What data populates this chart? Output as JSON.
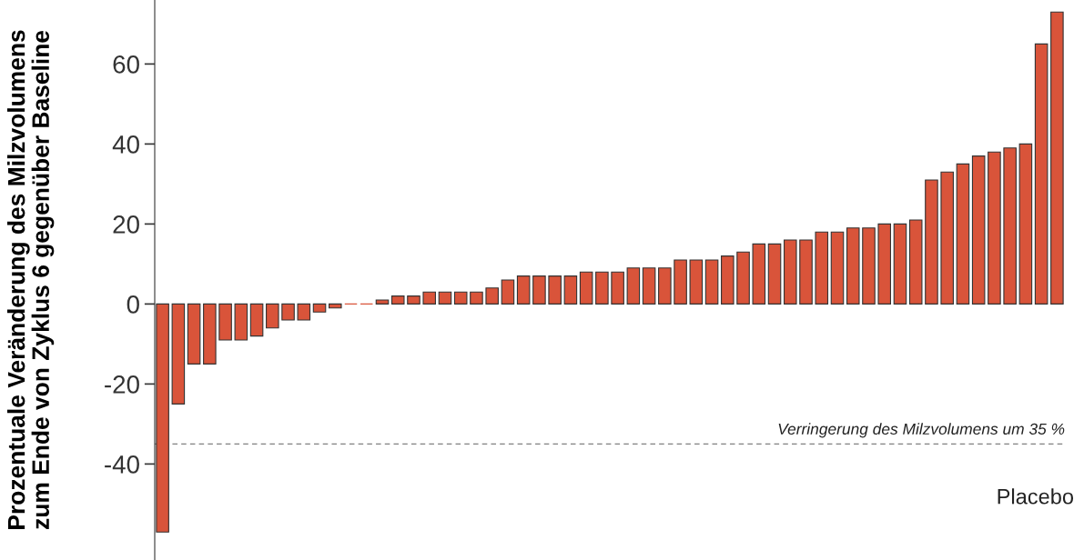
{
  "chart_data": {
    "type": "bar",
    "ylabel": "Prozentuale Veränderung des Milzvolumens\nzum Ende von Zyklus 6 gegenüber Baseline",
    "categories": [
      null,
      null,
      null,
      null,
      null,
      null,
      null,
      null,
      null,
      null,
      null,
      null,
      null,
      null,
      null,
      null,
      null,
      null,
      null,
      null,
      null,
      null,
      null,
      null,
      null,
      null,
      null,
      null,
      null,
      null,
      null,
      null,
      null,
      null,
      null,
      null,
      null,
      null,
      null,
      null,
      null,
      null,
      null,
      null,
      null,
      null,
      null,
      null,
      null,
      null,
      null,
      null,
      null,
      null,
      null,
      null,
      null,
      null
    ],
    "values": [
      -57,
      -25,
      -15,
      -15,
      -9,
      -9,
      -8,
      -6,
      -4,
      -4,
      -2,
      -1,
      0,
      0,
      1,
      2,
      2,
      3,
      3,
      3,
      3,
      4,
      6,
      7,
      7,
      7,
      7,
      8,
      8,
      8,
      9,
      9,
      9,
      11,
      11,
      11,
      12,
      13,
      15,
      15,
      16,
      16,
      18,
      18,
      19,
      19,
      20,
      20,
      21,
      31,
      33,
      35,
      37,
      38,
      39,
      40,
      65,
      73
    ],
    "color": "#d9543a",
    "ylim": [
      -64,
      76
    ],
    "yticks": [
      -40,
      -20,
      0,
      20,
      40,
      60
    ],
    "tick_labels": "y",
    "grid": false,
    "legend": false,
    "ref_lines": [
      {
        "axis": "y",
        "value": -35,
        "label": "Verringerung des Milzvolumens um 35 %",
        "color": "#808080",
        "line_style": "dashed"
      }
    ],
    "annotations": [
      "Placebo"
    ]
  }
}
